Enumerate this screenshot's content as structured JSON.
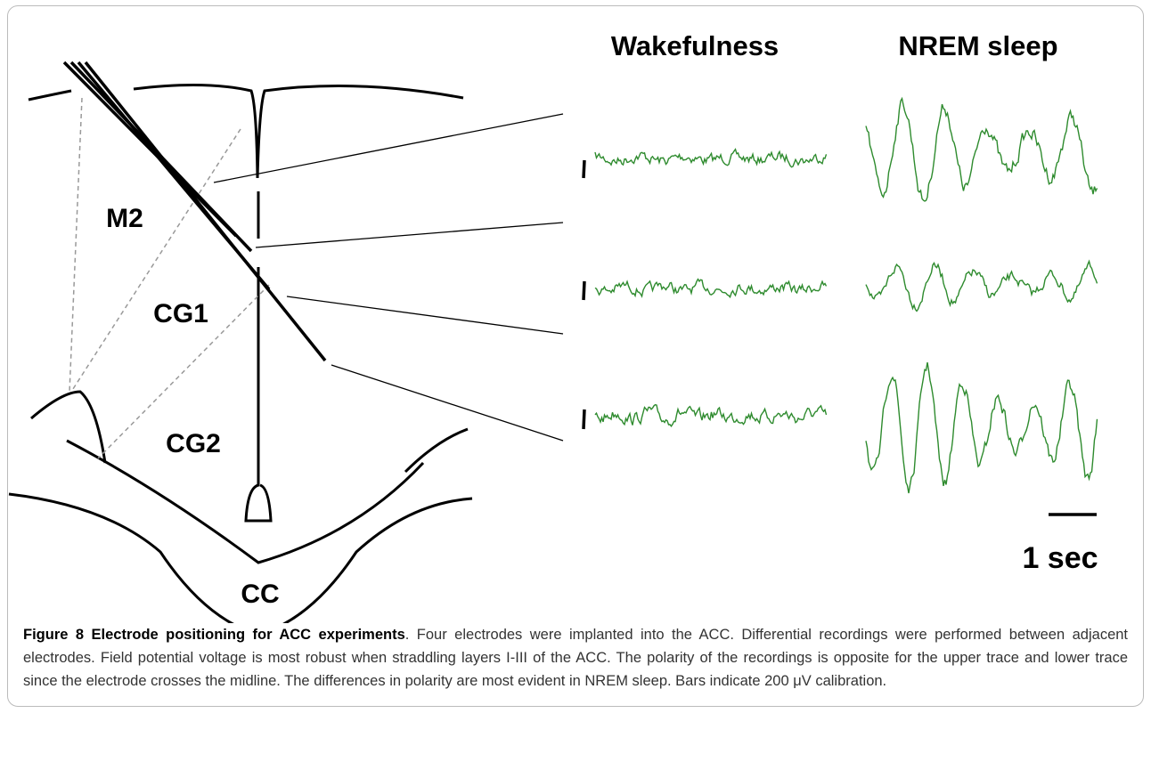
{
  "figure": {
    "headings": [
      "Wakefulness",
      "NREM sleep"
    ],
    "regions": [
      "M2",
      "CG1",
      "CG2",
      "CC"
    ],
    "scale_label": "1 sec"
  },
  "caption": {
    "label": "Figure 8 Electrode positioning for ACC experiments",
    "text": ". Four electrodes were implanted into the ACC. Differential recordings were performed between adjacent electrodes. Field potential voltage is most robust when straddling layers I-III of the ACC. The polarity of the recordings is opposite for the upper trace and lower trace since the electrode crosses the midline. The differences in polarity are most evident in NREM sleep. Bars indicate 200 μV calibration."
  }
}
